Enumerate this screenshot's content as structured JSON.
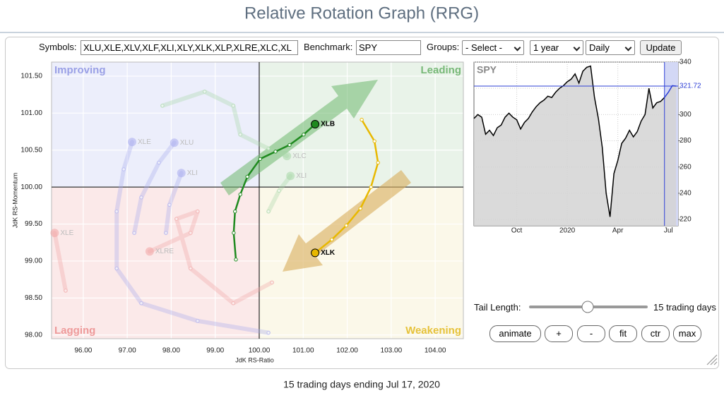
{
  "header": {
    "title": "Relative Rotation Graph (RRG)"
  },
  "controls": {
    "symbols_label": "Symbols:",
    "symbols": "XLU,XLE,XLV,XLF,XLI,XLY,XLK,XLP,XLRE,XLC,XL",
    "benchmark_label": "Benchmark:",
    "benchmark": "SPY",
    "groups_label": "Groups:",
    "groups": "- Select -",
    "period": "1 year",
    "frequency": "Daily",
    "update": "Update"
  },
  "chart_data": [
    {
      "type": "scatter",
      "x_label": "JdK RS-Ratio",
      "y_label": "JdK RS-Momentum",
      "xlim": [
        95.28,
        104.64
      ],
      "ylim": [
        97.95,
        101.69
      ],
      "center": [
        100,
        100
      ],
      "grid": true,
      "xticks": [
        {
          "value": 96,
          "label": "96.00"
        },
        {
          "value": 97,
          "label": "97.00"
        },
        {
          "value": 98,
          "label": "98.00"
        },
        {
          "value": 99,
          "label": "99.00"
        },
        {
          "value": 100,
          "label": "100.00"
        },
        {
          "value": 101,
          "label": "101.00"
        },
        {
          "value": 102,
          "label": "102.00"
        },
        {
          "value": 103,
          "label": "103.00"
        },
        {
          "value": 104,
          "label": "104.00"
        }
      ],
      "yticks": [
        {
          "value": 98,
          "label": "98.00"
        },
        {
          "value": 98.5,
          "label": "98.50"
        },
        {
          "value": 99,
          "label": "99.00"
        },
        {
          "value": 99.5,
          "label": "99.50"
        },
        {
          "value": 100,
          "label": "100.00"
        },
        {
          "value": 100.5,
          "label": "100.50"
        },
        {
          "value": 101,
          "label": "101.00"
        },
        {
          "value": 101.5,
          "label": "101.50"
        }
      ],
      "quadrants": [
        {
          "label": "Improving",
          "color": "#9aa0e6"
        },
        {
          "label": "Leading",
          "color": "#77b877"
        },
        {
          "label": "Lagging",
          "color": "#ee9a9a"
        },
        {
          "label": "Weakening",
          "color": "#e6c23a"
        }
      ],
      "series": [
        {
          "name": "XLE",
          "color": "#a9acef",
          "highlight": false,
          "x": [
            100.21,
            98.6,
            97.32,
            96.76,
            96.76,
            96.92,
            97.11
          ],
          "y": [
            98.03,
            98.19,
            98.43,
            98.9,
            99.67,
            100.24,
            100.61
          ]
        },
        {
          "name": "XLU",
          "color": "#a9acef",
          "highlight": false,
          "x": [
            97.16,
            97.32,
            97.72,
            98.07
          ],
          "y": [
            99.38,
            99.86,
            100.33,
            100.6
          ]
        },
        {
          "name": "XLI",
          "color": "#a9acef",
          "highlight": false,
          "x": [
            97.88,
            97.96,
            98.23
          ],
          "y": [
            99.38,
            99.76,
            100.19
          ]
        },
        {
          "name": "XLRE",
          "color": "#f2a5a5",
          "highlight": false,
          "x": [
            100.29,
            99.41,
            98.44,
            98.12,
            98.6,
            98.44,
            97.51
          ],
          "y": [
            98.71,
            98.43,
            98.9,
            99.57,
            99.67,
            99.38,
            99.13
          ]
        },
        {
          "name": "XLE",
          "color": "#f2a5a5",
          "highlight": false,
          "x": [
            95.6,
            95.35
          ],
          "y": [
            98.6,
            99.38
          ]
        },
        {
          "name": "XLC",
          "color": "#a8d8a8",
          "highlight": false,
          "x": [
            97.8,
            98.76,
            99.41,
            99.57,
            100.21,
            100.63
          ],
          "y": [
            101.1,
            101.29,
            101.1,
            100.71,
            100.52,
            100.42
          ]
        },
        {
          "name": "XLI",
          "color": "#a8d8a8",
          "highlight": false,
          "x": [
            100.21,
            100.45,
            100.71
          ],
          "y": [
            99.67,
            99.95,
            100.15
          ]
        },
        {
          "name": "XLB",
          "color": "#1f8a1f",
          "highlight": true,
          "x": [
            99.47,
            99.42,
            99.45,
            99.57,
            99.73,
            100.02,
            100.37,
            100.69,
            101.01,
            101.27
          ],
          "y": [
            99.02,
            99.38,
            99.67,
            99.9,
            100.14,
            100.38,
            100.48,
            100.57,
            100.71,
            100.85
          ]
        },
        {
          "name": "XLK",
          "color": "#e8b800",
          "highlight": true,
          "x": [
            102.33,
            102.62,
            102.7,
            102.54,
            102.3,
            101.98,
            101.65,
            101.27
          ],
          "y": [
            100.91,
            100.62,
            100.33,
            100.0,
            99.71,
            99.48,
            99.29,
            99.11
          ]
        }
      ]
    },
    {
      "type": "line",
      "title": "SPY",
      "color": "#000000",
      "highlight_color": "#2d3fd6",
      "highlight_from": 49,
      "last_value": 321.72,
      "xlim": [
        0,
        52.5
      ],
      "ylim": [
        215.2,
        340
      ],
      "grid": true,
      "xticks": [
        {
          "value": 11,
          "label": "Oct"
        },
        {
          "value": 24,
          "label": "2020"
        },
        {
          "value": 37,
          "label": "Apr"
        },
        {
          "value": 50,
          "label": "Jul"
        }
      ],
      "yticks": [
        220,
        240,
        260,
        280,
        300,
        320,
        340
      ],
      "values": [
        297,
        300,
        298,
        285,
        288,
        284,
        290,
        292,
        298,
        301,
        298,
        296,
        289,
        294,
        297,
        302,
        306,
        309,
        311,
        314,
        313,
        317,
        320,
        322,
        325,
        327,
        331,
        324,
        333,
        336,
        337,
        313,
        297,
        275,
        240,
        222,
        255,
        265,
        278,
        282,
        288,
        283,
        287,
        295,
        300,
        320,
        305,
        309,
        310,
        313,
        317,
        322,
        321.72
      ]
    }
  ],
  "tail": {
    "label": "Tail Length:",
    "value_text": "15 trading days"
  },
  "buttons": [
    "animate",
    "+",
    "-",
    "fit",
    "ctr",
    "max"
  ],
  "footer": "15 trading days ending Jul 17, 2020"
}
